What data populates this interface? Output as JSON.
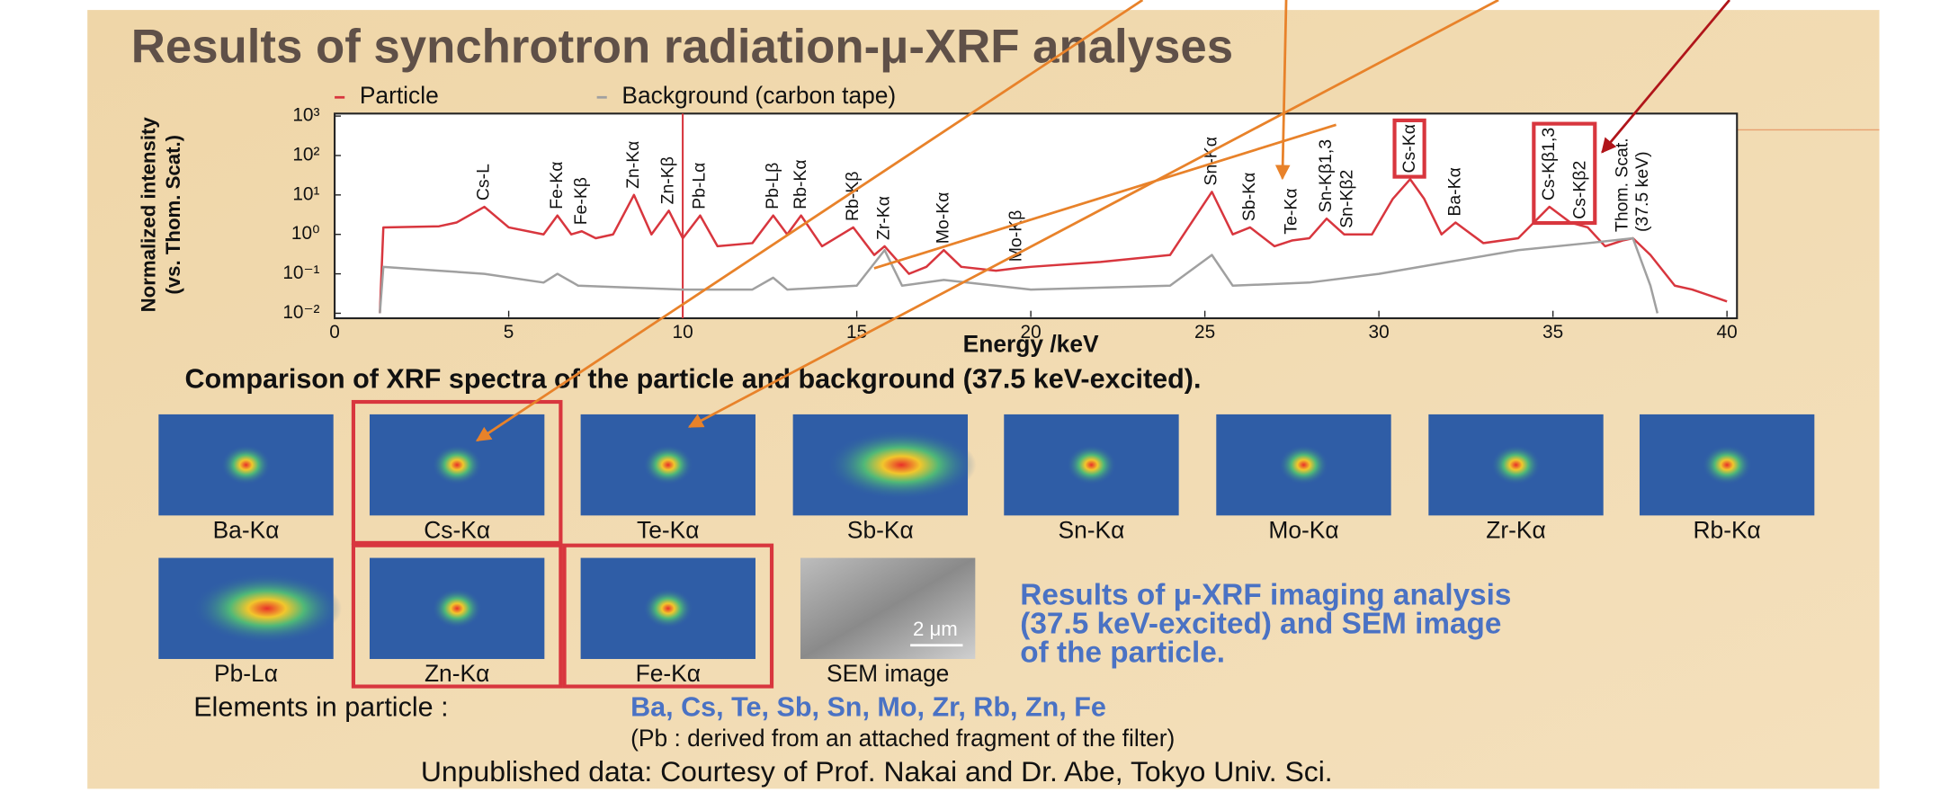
{
  "title": "Results of synchrotron radiation-μ-XRF analyses",
  "chart_data": {
    "type": "line",
    "x_label": "Energy /keV",
    "y_label": [
      "Normalized intensity",
      "(vs. Thom. Scat.)"
    ],
    "log_scale": true,
    "legend": "top-left",
    "xlim": [
      0,
      40
    ],
    "xticks": [
      0,
      5,
      10,
      15,
      20,
      25,
      30,
      35,
      40
    ],
    "ylim": [
      0.01,
      1000
    ],
    "yticks": [
      {
        "value": 1000,
        "label": "10³"
      },
      {
        "value": 100,
        "label": "10²"
      },
      {
        "value": 10,
        "label": "10¹"
      },
      {
        "value": 1,
        "label": "10⁰"
      },
      {
        "value": 0.1,
        "label": "10⁻¹"
      },
      {
        "value": 0.01,
        "label": "10⁻²"
      }
    ],
    "series": [
      {
        "name": "Particle",
        "color": "#d8363e",
        "x": [
          1.3,
          1.4,
          3,
          3.5,
          4.3,
          5,
          6,
          6.4,
          6.8,
          7.1,
          7.5,
          8,
          8.6,
          9.1,
          9.6,
          10,
          10.5,
          11,
          12,
          12.6,
          13,
          13.4,
          14,
          14.9,
          15.5,
          15.8,
          16.5,
          17,
          17.5,
          18,
          19,
          19.6,
          20,
          22,
          24,
          25.2,
          25.8,
          26.3,
          27,
          27.5,
          28,
          28.5,
          29,
          29.8,
          30.4,
          30.9,
          31.3,
          31.8,
          32.2,
          33,
          34,
          34.9,
          35.5,
          36,
          36.5,
          37,
          37.3,
          37.8,
          38.5,
          39,
          40
        ],
        "values": [
          0.01,
          1.5,
          1.6,
          2,
          5,
          1.5,
          1,
          3,
          1,
          1.2,
          0.8,
          1,
          10,
          1,
          4,
          0.8,
          3,
          0.5,
          0.6,
          3,
          1,
          3,
          0.5,
          1.5,
          0.3,
          0.5,
          0.1,
          0.15,
          0.4,
          0.15,
          0.12,
          0.14,
          0.15,
          0.2,
          0.3,
          12,
          1,
          1.5,
          0.5,
          0.7,
          0.8,
          2.5,
          1,
          1,
          8,
          25,
          8,
          1,
          2,
          0.6,
          0.8,
          5,
          2,
          1.5,
          0.5,
          0.7,
          0.8,
          0.3,
          0.05,
          0.04,
          0.02
        ]
      },
      {
        "name": "Background (carbon tape)",
        "color": "#a0a0a0",
        "x": [
          1.3,
          1.4,
          3,
          4.3,
          6,
          6.4,
          7,
          10,
          12,
          12.6,
          13,
          15,
          15.8,
          16.3,
          17.5,
          20,
          24,
          25.2,
          25.8,
          28,
          30,
          32,
          34,
          36,
          37.3,
          37.8,
          38
        ],
        "values": [
          0.01,
          0.15,
          0.12,
          0.1,
          0.06,
          0.1,
          0.05,
          0.04,
          0.04,
          0.08,
          0.04,
          0.05,
          0.4,
          0.05,
          0.07,
          0.04,
          0.05,
          0.3,
          0.05,
          0.06,
          0.1,
          0.2,
          0.4,
          0.6,
          0.8,
          0.05,
          0.01
        ]
      }
    ],
    "annotations": [
      {
        "text": "Cs-L",
        "x": 4.3
      },
      {
        "text": "Fe-Kα",
        "x": 6.4
      },
      {
        "text": "Fe-Kβ",
        "x": 7.1
      },
      {
        "text": "Zn-Kα",
        "x": 8.6
      },
      {
        "text": "Zn-Kβ",
        "x": 9.6
      },
      {
        "text": "Pb-Lα",
        "x": 10.5
      },
      {
        "text": "Pb-Lβ",
        "x": 12.6
      },
      {
        "text": "Rb-Kα",
        "x": 13.4
      },
      {
        "text": "Rb-Kβ",
        "x": 14.9
      },
      {
        "text": "Zr-Kα",
        "x": 15.8
      },
      {
        "text": "Mo-Kα",
        "x": 17.5
      },
      {
        "text": "Mo-Kβ",
        "x": 19.6
      },
      {
        "text": "Sn-Kα",
        "x": 25.2
      },
      {
        "text": "Sb-Kα",
        "x": 26.3
      },
      {
        "text": "Te-Kα",
        "x": 27.5
      },
      {
        "text": "Sn-Kβ1,3",
        "x": 28.5
      },
      {
        "text": "Sn-Kβ2",
        "x": 29.1
      },
      {
        "text": "Cs-Kα",
        "x": 30.9
      },
      {
        "text": "Ba-Kα",
        "x": 32.2
      },
      {
        "text": "Cs-Kβ1,3",
        "x": 34.9
      },
      {
        "text": "Cs-Kβ2",
        "x": 35.8
      },
      {
        "text": [
          "Thom. Scat.",
          "(37.5 keV)"
        ],
        "x": 37.3
      }
    ]
  },
  "chart_caption": "Comparison of XRF spectra of the particle and background (37.5 keV-excited).",
  "images": [
    [
      {
        "label": "Ba-Kα"
      },
      {
        "label": "Cs-Kα",
        "highlight": true
      },
      {
        "label": "Te-Kα"
      },
      {
        "label": "Sb-Kα"
      },
      {
        "label": "Sn-Kα"
      },
      {
        "label": "Mo-Kα"
      },
      {
        "label": "Zr-Kα"
      },
      {
        "label": "Rb-Kα"
      }
    ],
    [
      {
        "label": "Pb-Lα"
      },
      {
        "label": "Zn-Kα",
        "highlight": true
      },
      {
        "label": "Fe-Kα",
        "highlight": true
      },
      {
        "label": "SEM image",
        "scale": "2 μm"
      }
    ]
  ],
  "imaging_caption": [
    "Results of μ-XRF imaging analysis",
    "(37.5 keV-excited) and SEM image",
    "of the particle."
  ],
  "elements_label": "Elements in particle :",
  "elements": "Ba, Cs, Te, Sb, Sn, Mo, Zr, Rb, Zn, Fe",
  "note": "(Pb : derived from an attached fragment of the filter)",
  "credit": "Unpublished data: Courtesy of Prof. Nakai and Dr. Abe, Tokyo Univ. Sci."
}
